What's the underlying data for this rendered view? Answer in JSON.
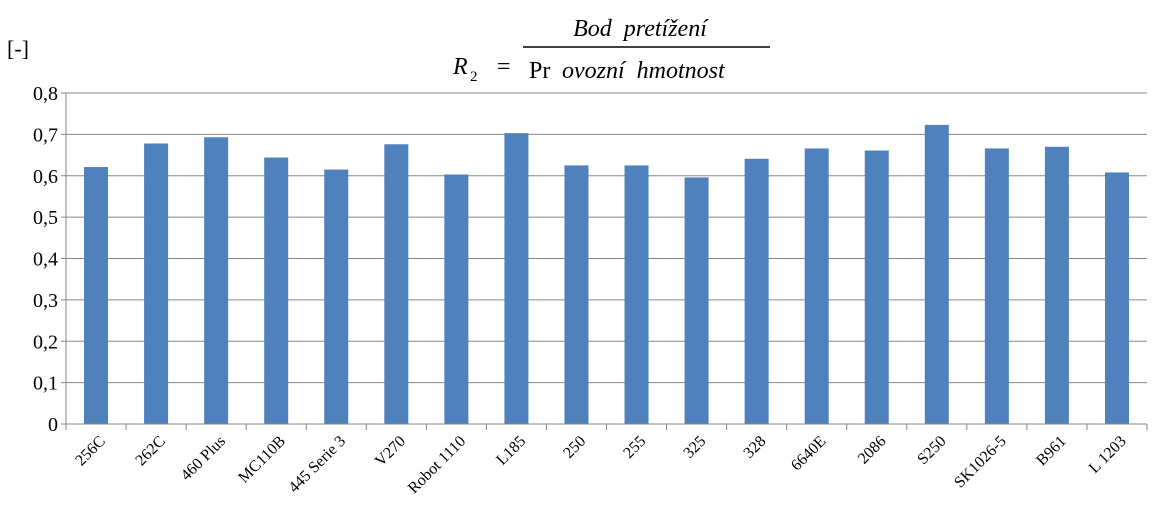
{
  "chart_data": {
    "type": "bar",
    "title": "",
    "formula": {
      "lhs_symbol": "R",
      "lhs_subscript": "2",
      "equals": "=",
      "numerator": "Bod  pretížení",
      "denominator_prefix": "Pr",
      "denominator_rest": "ovozní  hmotnost"
    },
    "xlabel": "",
    "ylabel": "[-]",
    "ylim": [
      0,
      0.8
    ],
    "yticks": [
      "0",
      "0,1",
      "0,2",
      "0,3",
      "0,4",
      "0,5",
      "0,6",
      "0,7",
      "0,8"
    ],
    "ytick_values": [
      0,
      0.1,
      0.2,
      0.3,
      0.4,
      0.5,
      0.6,
      0.7,
      0.8
    ],
    "grid": true,
    "bar_color": "#4F81BD",
    "categories": [
      "256C",
      "262C",
      "460 Plus",
      "MC110B",
      "445 Serie 3",
      "V270",
      "Robot 1110",
      "L185",
      "250",
      "255",
      "325",
      "328",
      "6640E",
      "2086",
      "S250",
      "SK1026-5",
      "B961",
      "L 1203"
    ],
    "values": [
      0.621,
      0.678,
      0.693,
      0.644,
      0.615,
      0.676,
      0.603,
      0.703,
      0.625,
      0.625,
      0.596,
      0.641,
      0.666,
      0.661,
      0.723,
      0.666,
      0.67,
      0.608
    ]
  }
}
